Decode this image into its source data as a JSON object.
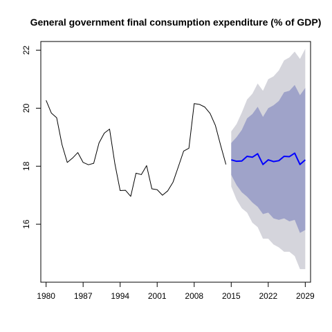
{
  "chart_data": {
    "type": "line",
    "title": "General government final consumption expenditure (% of GDP)",
    "xlabel": "",
    "ylabel": "",
    "xlim": [
      1979,
      2030
    ],
    "ylim": [
      14.0,
      22.3
    ],
    "x_ticks": [
      1980,
      1987,
      1994,
      2001,
      2008,
      2015,
      2022,
      2029
    ],
    "y_ticks": [
      16,
      18,
      20,
      22
    ],
    "grid": false,
    "legend": "none",
    "colors": {
      "history": "#000000",
      "forecast_mean": "#0000ff",
      "band_80": "#9fa3c9",
      "band_95": "#d5d5dc",
      "axis": "#000000"
    },
    "series": [
      {
        "role": "history",
        "x": [
          1980,
          1981,
          1982,
          1983,
          1984,
          1985,
          1986,
          1987,
          1988,
          1989,
          1990,
          1991,
          1992,
          1993,
          1994,
          1995,
          1996,
          1997,
          1998,
          1999,
          2000,
          2001,
          2002,
          2003,
          2004,
          2005,
          2006,
          2007,
          2008,
          2009,
          2010,
          2011,
          2012,
          2013,
          2014
        ],
        "y": [
          20.27,
          19.83,
          19.67,
          18.75,
          18.13,
          18.28,
          18.47,
          18.13,
          18.05,
          18.1,
          18.8,
          19.14,
          19.28,
          18.09,
          17.16,
          17.17,
          16.96,
          17.76,
          17.71,
          18.02,
          17.22,
          17.19,
          17.0,
          17.15,
          17.45,
          17.98,
          18.52,
          18.62,
          20.16,
          20.13,
          20.04,
          19.82,
          19.41,
          18.72,
          18.06
        ]
      },
      {
        "role": "forecast_mean",
        "x": [
          2015,
          2016,
          2017,
          2018,
          2019,
          2020,
          2021,
          2022,
          2023,
          2024,
          2025,
          2026,
          2027,
          2028,
          2029
        ],
        "y": [
          18.22,
          18.17,
          18.18,
          18.34,
          18.31,
          18.43,
          18.06,
          18.22,
          18.16,
          18.19,
          18.34,
          18.33,
          18.45,
          18.06,
          18.22
        ]
      }
    ],
    "bands": [
      {
        "level": 95,
        "x": [
          2015,
          2016,
          2017,
          2018,
          2019,
          2020,
          2021,
          2022,
          2023,
          2024,
          2025,
          2026,
          2027,
          2028,
          2029
        ],
        "lower": [
          17.3,
          16.85,
          16.55,
          16.4,
          16.05,
          15.9,
          15.5,
          15.5,
          15.3,
          15.2,
          15.05,
          15.05,
          14.9,
          14.45,
          14.45
        ],
        "upper": [
          19.2,
          19.45,
          19.85,
          20.3,
          20.5,
          20.85,
          20.6,
          21.0,
          21.1,
          21.3,
          21.65,
          21.75,
          21.95,
          21.7,
          22.05
        ]
      },
      {
        "level": 80,
        "x": [
          2015,
          2016,
          2017,
          2018,
          2019,
          2020,
          2021,
          2022,
          2023,
          2024,
          2025,
          2026,
          2027,
          2028,
          2029
        ],
        "lower": [
          17.7,
          17.35,
          17.1,
          16.95,
          16.75,
          16.6,
          16.35,
          16.4,
          16.2,
          16.15,
          16.2,
          16.1,
          16.15,
          15.7,
          15.8
        ],
        "upper": [
          18.8,
          19.0,
          19.25,
          19.65,
          19.8,
          20.05,
          19.7,
          20.0,
          20.1,
          20.25,
          20.55,
          20.6,
          20.8,
          20.45,
          20.7
        ]
      }
    ]
  }
}
